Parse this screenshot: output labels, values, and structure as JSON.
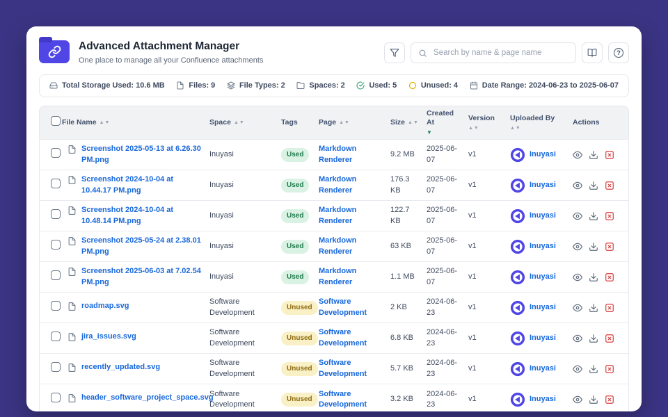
{
  "app": {
    "title": "Advanced Attachment Manager",
    "subtitle": "One place to manage all your Confluence attachments"
  },
  "toolbar": {
    "search_placeholder": "Search by name & page name"
  },
  "stats": [
    {
      "icon": "storage-icon",
      "sym": "hard-drive",
      "label": "Total Storage Used: 10.6 MB"
    },
    {
      "icon": "files-icon",
      "sym": "file",
      "label": "Files: 9"
    },
    {
      "icon": "file-types-icon",
      "sym": "layers",
      "label": "File Types: 2"
    },
    {
      "icon": "spaces-icon",
      "sym": "folder",
      "label": "Spaces: 2"
    },
    {
      "icon": "used-icon",
      "sym": "check-circle",
      "label": "Used: 5",
      "color": "#22a06b"
    },
    {
      "icon": "unused-icon",
      "sym": "circle",
      "label": "Unused: 4",
      "color": "#e2b203"
    },
    {
      "icon": "date-range-icon",
      "sym": "calendar",
      "label": "Date Range: 2024-06-23 to 2025-06-07"
    }
  ],
  "table": {
    "sort_glyphs": {
      "inactive": "▲▼",
      "desc": "▼"
    },
    "columns": [
      {
        "type": "checkbox",
        "label": ""
      },
      {
        "label": "File Name",
        "sort": "inactive"
      },
      {
        "label": "Space",
        "sort": "inactive"
      },
      {
        "label": "Tags",
        "sort": "none"
      },
      {
        "label": "Page",
        "sort": "inactive"
      },
      {
        "label": "Size",
        "sort": "inactive"
      },
      {
        "label": "Created At",
        "sort": "desc",
        "break": true
      },
      {
        "label": "Version",
        "sort": "inactive",
        "break": true
      },
      {
        "label": "Uploaded By",
        "sort": "inactive",
        "break": true
      },
      {
        "label": "Actions",
        "sort": "none"
      }
    ],
    "rows": [
      {
        "file": "Screenshot 2025-05-13 at 6.26.30 PM.png",
        "space": "Inuyasi",
        "tag": "Used",
        "page": "Markdown Renderer",
        "size": "9.2 MB",
        "created": "2025-06-07",
        "version": "v1",
        "uploader": "Inuyasi"
      },
      {
        "file": "Screenshot 2024-10-04 at 10.44.17 PM.png",
        "space": "Inuyasi",
        "tag": "Used",
        "page": "Markdown Renderer",
        "size": "176.3 KB",
        "created": "2025-06-07",
        "version": "v1",
        "uploader": "Inuyasi"
      },
      {
        "file": "Screenshot 2024-10-04 at 10.48.14 PM.png",
        "space": "Inuyasi",
        "tag": "Used",
        "page": "Markdown Renderer",
        "size": "122.7 KB",
        "created": "2025-06-07",
        "version": "v1",
        "uploader": "Inuyasi"
      },
      {
        "file": "Screenshot 2025-05-24 at 2.38.01 PM.png",
        "space": "Inuyasi",
        "tag": "Used",
        "page": "Markdown Renderer",
        "size": "63 KB",
        "created": "2025-06-07",
        "version": "v1",
        "uploader": "Inuyasi"
      },
      {
        "file": "Screenshot 2025-06-03 at 7.02.54 PM.png",
        "space": "Inuyasi",
        "tag": "Used",
        "page": "Markdown Renderer",
        "size": "1.1 MB",
        "created": "2025-06-07",
        "version": "v1",
        "uploader": "Inuyasi"
      },
      {
        "file": "roadmap.svg",
        "space": "Software Development",
        "tag": "Unused",
        "page": "Software Development",
        "size": "2 KB",
        "created": "2024-06-23",
        "version": "v1",
        "uploader": "Inuyasi"
      },
      {
        "file": "jira_issues.svg",
        "space": "Software Development",
        "tag": "Unused",
        "page": "Software Development",
        "size": "6.8 KB",
        "created": "2024-06-23",
        "version": "v1",
        "uploader": "Inuyasi"
      },
      {
        "file": "recently_updated.svg",
        "space": "Software Development",
        "tag": "Unused",
        "page": "Software Development",
        "size": "5.7 KB",
        "created": "2024-06-23",
        "version": "v1",
        "uploader": "Inuyasi"
      },
      {
        "file": "header_software_project_space.svg",
        "space": "Software Development",
        "tag": "Unused",
        "page": "Software Development",
        "size": "3.2 KB",
        "created": "2024-06-23",
        "version": "v1",
        "uploader": "Inuyasi"
      }
    ]
  },
  "colors": {
    "page-bg": "#3b3484",
    "accent": "#4f46e5",
    "accent-dark": "#4338ca",
    "link": "#1868db",
    "sort-active": "#1f845a",
    "used-bg": "#d9f2e3",
    "used-text": "#1f7a4c",
    "unused-bg": "#faf0c5",
    "unused-text": "#8f6c11",
    "danger": "#d63b3b"
  }
}
